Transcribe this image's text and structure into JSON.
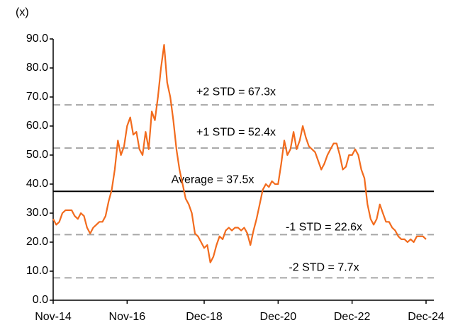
{
  "chart_data": {
    "type": "line",
    "y_label": "(x)",
    "categories": [
      "Nov-14",
      null,
      null,
      null,
      null,
      null,
      null,
      null,
      null,
      null,
      null,
      null,
      null,
      null,
      null,
      null,
      null,
      null,
      null,
      null,
      null,
      null,
      null,
      null,
      "Nov-16",
      null,
      null,
      null,
      null,
      null,
      null,
      null,
      null,
      null,
      null,
      null,
      null,
      null,
      null,
      null,
      null,
      null,
      null,
      null,
      null,
      null,
      null,
      null,
      null,
      "Dec-18",
      null,
      null,
      null,
      null,
      null,
      null,
      null,
      null,
      null,
      null,
      null,
      null,
      null,
      null,
      null,
      null,
      null,
      null,
      null,
      null,
      null,
      null,
      null,
      "Dec-20",
      null,
      null,
      null,
      null,
      null,
      null,
      null,
      null,
      null,
      null,
      null,
      null,
      null,
      null,
      null,
      null,
      null,
      null,
      null,
      null,
      null,
      null,
      null,
      "Dec-22",
      null,
      null,
      null,
      null,
      null,
      null,
      null,
      null,
      null,
      null,
      null,
      null,
      null,
      null,
      null,
      null,
      null,
      null,
      null,
      null,
      null,
      null,
      null,
      "Dec-24"
    ],
    "series": [
      {
        "color": "#f26b1d",
        "values": [
          28,
          26,
          27,
          30,
          31,
          31,
          31,
          29,
          28,
          30,
          29,
          25,
          23,
          25,
          26,
          27,
          27,
          29,
          34,
          38,
          45,
          55,
          50,
          53,
          60,
          63,
          57,
          58,
          52,
          50,
          58,
          52,
          65,
          62,
          70,
          80,
          88,
          75,
          70,
          62,
          52,
          45,
          40,
          35,
          33,
          30,
          23,
          22,
          20,
          18,
          19,
          13,
          15,
          19,
          22,
          21,
          24,
          25,
          24,
          25,
          25,
          24,
          25,
          23,
          19,
          24,
          28,
          33,
          38,
          40,
          39,
          41,
          40,
          40,
          47,
          55,
          50,
          52,
          58,
          52,
          55,
          60,
          56,
          53,
          52,
          51,
          48,
          45,
          47,
          50,
          52,
          54,
          54,
          50,
          45,
          46,
          50,
          50,
          52,
          50,
          45,
          42,
          33,
          28,
          26,
          28,
          33,
          30,
          27,
          27,
          25,
          24,
          22,
          21,
          21,
          20,
          21,
          20,
          22,
          22,
          22,
          21
        ]
      }
    ],
    "bands": [
      {
        "label": "+2 STD = 67.3x",
        "value": 67.3,
        "color": "#a6a6a6"
      },
      {
        "label": "+1 STD = 52.4x",
        "value": 52.4,
        "color": "#a6a6a6"
      },
      {
        "label": "Average = 37.5x",
        "value": 37.5,
        "color": "#000000"
      },
      {
        "label": "-1 STD = 22.6x",
        "value": 22.6,
        "color": "#a6a6a6"
      },
      {
        "label": "-2 STD = 7.7x",
        "value": 7.7,
        "color": "#a6a6a6"
      }
    ],
    "ylim": [
      0,
      90
    ],
    "yticks": [
      {
        "value": 0,
        "label": "0.0"
      },
      {
        "value": 10,
        "label": "10.0"
      },
      {
        "value": 20,
        "label": "20.0"
      },
      {
        "value": 30,
        "label": "30.0"
      },
      {
        "value": 40,
        "label": "40.0"
      },
      {
        "value": 50,
        "label": "50.0"
      },
      {
        "value": 60,
        "label": "60.0"
      },
      {
        "value": 70,
        "label": "70.0"
      },
      {
        "value": 80,
        "label": "80.0"
      },
      {
        "value": 90,
        "label": "90.0"
      }
    ]
  }
}
